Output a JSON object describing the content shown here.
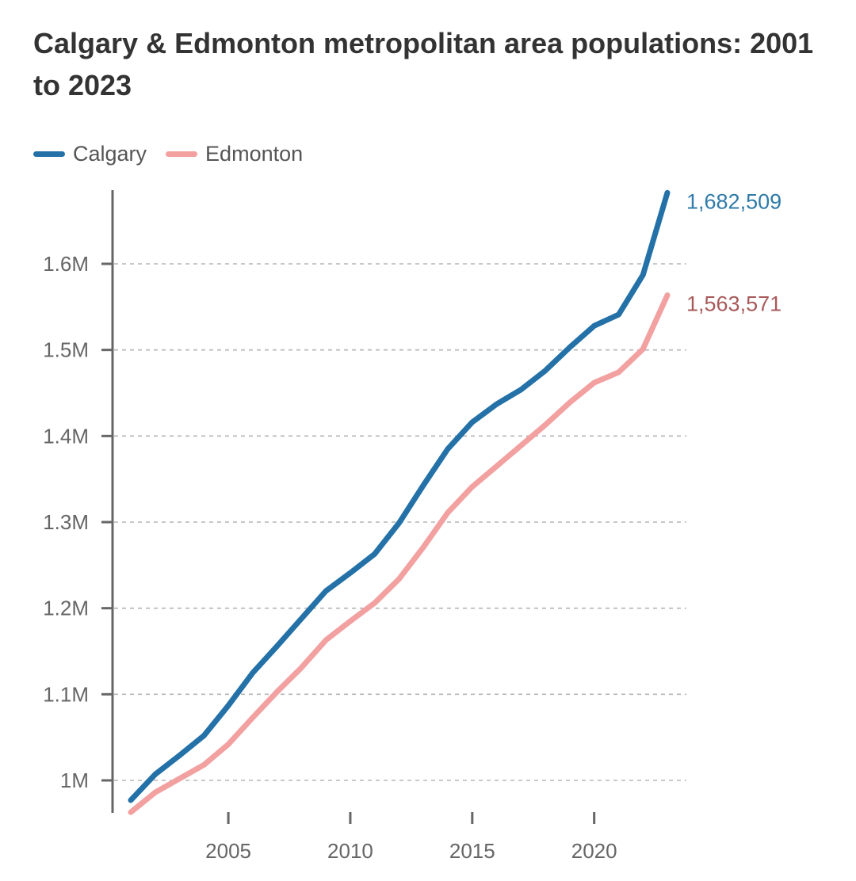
{
  "chart_data": {
    "type": "line",
    "title": "Calgary & Edmonton metropolitan area populations: 2001 to 2023",
    "xlabel": "",
    "ylabel": "",
    "x": [
      2001,
      2002,
      2003,
      2004,
      2005,
      2006,
      2007,
      2008,
      2009,
      2010,
      2011,
      2012,
      2013,
      2014,
      2015,
      2016,
      2017,
      2018,
      2019,
      2020,
      2021,
      2022,
      2023
    ],
    "series": [
      {
        "name": "Calgary",
        "color": "#2471a8",
        "values": [
          977000,
          1007000,
          1029000,
          1052000,
          1087000,
          1125000,
          1156000,
          1188000,
          1220000,
          1241000,
          1263000,
          1299000,
          1343000,
          1385000,
          1416000,
          1437000,
          1454000,
          1476000,
          1503000,
          1528000,
          1541000,
          1587000,
          1682509
        ],
        "end_label": "1,682,509",
        "end_label_color": "#2f7aa8"
      },
      {
        "name": "Edmonton",
        "color": "#f2a0a0",
        "values": [
          963000,
          986000,
          1002000,
          1018000,
          1042000,
          1073000,
          1103000,
          1131000,
          1163000,
          1185000,
          1206000,
          1234000,
          1271000,
          1311000,
          1341000,
          1365000,
          1389000,
          1413000,
          1439000,
          1462000,
          1474000,
          1501000,
          1563571
        ],
        "end_label": "1,563,571",
        "end_label_color": "#a85a5a"
      }
    ],
    "ylim": [
      950000,
      1700000
    ],
    "xlim": [
      2000.2,
      2023
    ],
    "y_ticks": [
      1000000,
      1100000,
      1200000,
      1300000,
      1400000,
      1500000,
      1600000
    ],
    "y_tick_labels": [
      "1M",
      "1.1M",
      "1.2M",
      "1.3M",
      "1.4M",
      "1.5M",
      "1.6M"
    ],
    "x_ticks": [
      2005,
      2010,
      2015,
      2020
    ],
    "x_tick_labels": [
      "2005",
      "2010",
      "2015",
      "2020"
    ],
    "grid": "horizontal dashed",
    "legend_position": "top-left"
  },
  "colors": {
    "title": "#333333",
    "tick_label": "#666666",
    "axis": "#666666",
    "grid": "#b5b5b5"
  }
}
